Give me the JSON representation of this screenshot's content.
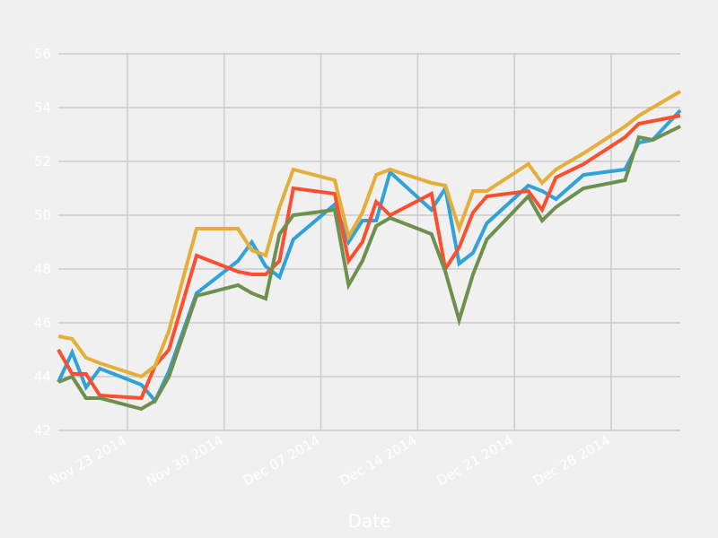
{
  "chart_data": {
    "type": "line",
    "title": "",
    "xlabel": "Date",
    "ylabel": "",
    "ylim": [
      42,
      56
    ],
    "xlim": [
      "2014-11-18",
      "2015-01-02"
    ],
    "grid": true,
    "legend": "none",
    "y_ticks": [
      42,
      44,
      46,
      48,
      50,
      52,
      54,
      56
    ],
    "x_ticks": [
      {
        "date": "2014-11-23",
        "label": "Nov 23 2014"
      },
      {
        "date": "2014-11-30",
        "label": "Nov 30 2014"
      },
      {
        "date": "2014-12-07",
        "label": "Dec 07 2014"
      },
      {
        "date": "2014-12-14",
        "label": "Dec 14 2014"
      },
      {
        "date": "2014-12-21",
        "label": "Dec 21 2014"
      },
      {
        "date": "2014-12-28",
        "label": "Dec 28 2014"
      }
    ],
    "x": [
      "2014-11-18",
      "2014-11-19",
      "2014-11-20",
      "2014-11-21",
      "2014-11-24",
      "2014-11-25",
      "2014-11-26",
      "2014-11-28",
      "2014-12-01",
      "2014-12-02",
      "2014-12-03",
      "2014-12-04",
      "2014-12-05",
      "2014-12-08",
      "2014-12-09",
      "2014-12-10",
      "2014-12-11",
      "2014-12-12",
      "2014-12-15",
      "2014-12-16",
      "2014-12-17",
      "2014-12-18",
      "2014-12-19",
      "2014-12-22",
      "2014-12-23",
      "2014-12-24",
      "2014-12-26",
      "2014-12-29",
      "2014-12-30",
      "2014-12-31",
      "2015-01-02"
    ],
    "series": [
      {
        "color": "#30a2da",
        "values": [
          43.8,
          44.9,
          43.6,
          44.3,
          43.7,
          43.1,
          44.2,
          47.1,
          48.3,
          49.0,
          48.1,
          47.7,
          49.1,
          50.4,
          49.0,
          49.8,
          49.8,
          51.6,
          50.2,
          51.0,
          48.2,
          48.6,
          49.7,
          51.1,
          50.9,
          50.6,
          51.5,
          51.7,
          52.7,
          52.8,
          53.9
        ]
      },
      {
        "color": "#fc4f30",
        "values": [
          45.0,
          44.1,
          44.1,
          43.3,
          43.2,
          44.4,
          45.0,
          48.5,
          47.9,
          47.8,
          47.8,
          48.3,
          51.0,
          50.8,
          48.3,
          49.0,
          50.5,
          50.0,
          50.8,
          48.0,
          48.8,
          50.1,
          50.7,
          50.9,
          50.2,
          51.4,
          51.9,
          52.9,
          53.4,
          53.5,
          53.7
        ]
      },
      {
        "color": "#e5ae38",
        "values": [
          45.5,
          45.4,
          44.7,
          44.5,
          44.0,
          44.4,
          45.7,
          49.5,
          49.5,
          48.7,
          48.5,
          50.3,
          51.7,
          51.3,
          49.2,
          50.1,
          51.5,
          51.7,
          51.2,
          51.1,
          49.5,
          50.9,
          50.9,
          51.9,
          51.2,
          51.7,
          52.3,
          53.3,
          53.7,
          54.0,
          54.6
        ]
      },
      {
        "color": "#6d904f",
        "values": [
          43.8,
          44.0,
          43.2,
          43.2,
          42.8,
          43.1,
          44.0,
          47.0,
          47.4,
          47.1,
          46.9,
          49.3,
          50.0,
          50.2,
          47.4,
          48.3,
          49.6,
          49.9,
          49.3,
          47.9,
          46.1,
          47.8,
          49.1,
          50.7,
          49.8,
          50.3,
          51.0,
          51.3,
          52.9,
          52.8,
          53.3
        ]
      }
    ]
  }
}
